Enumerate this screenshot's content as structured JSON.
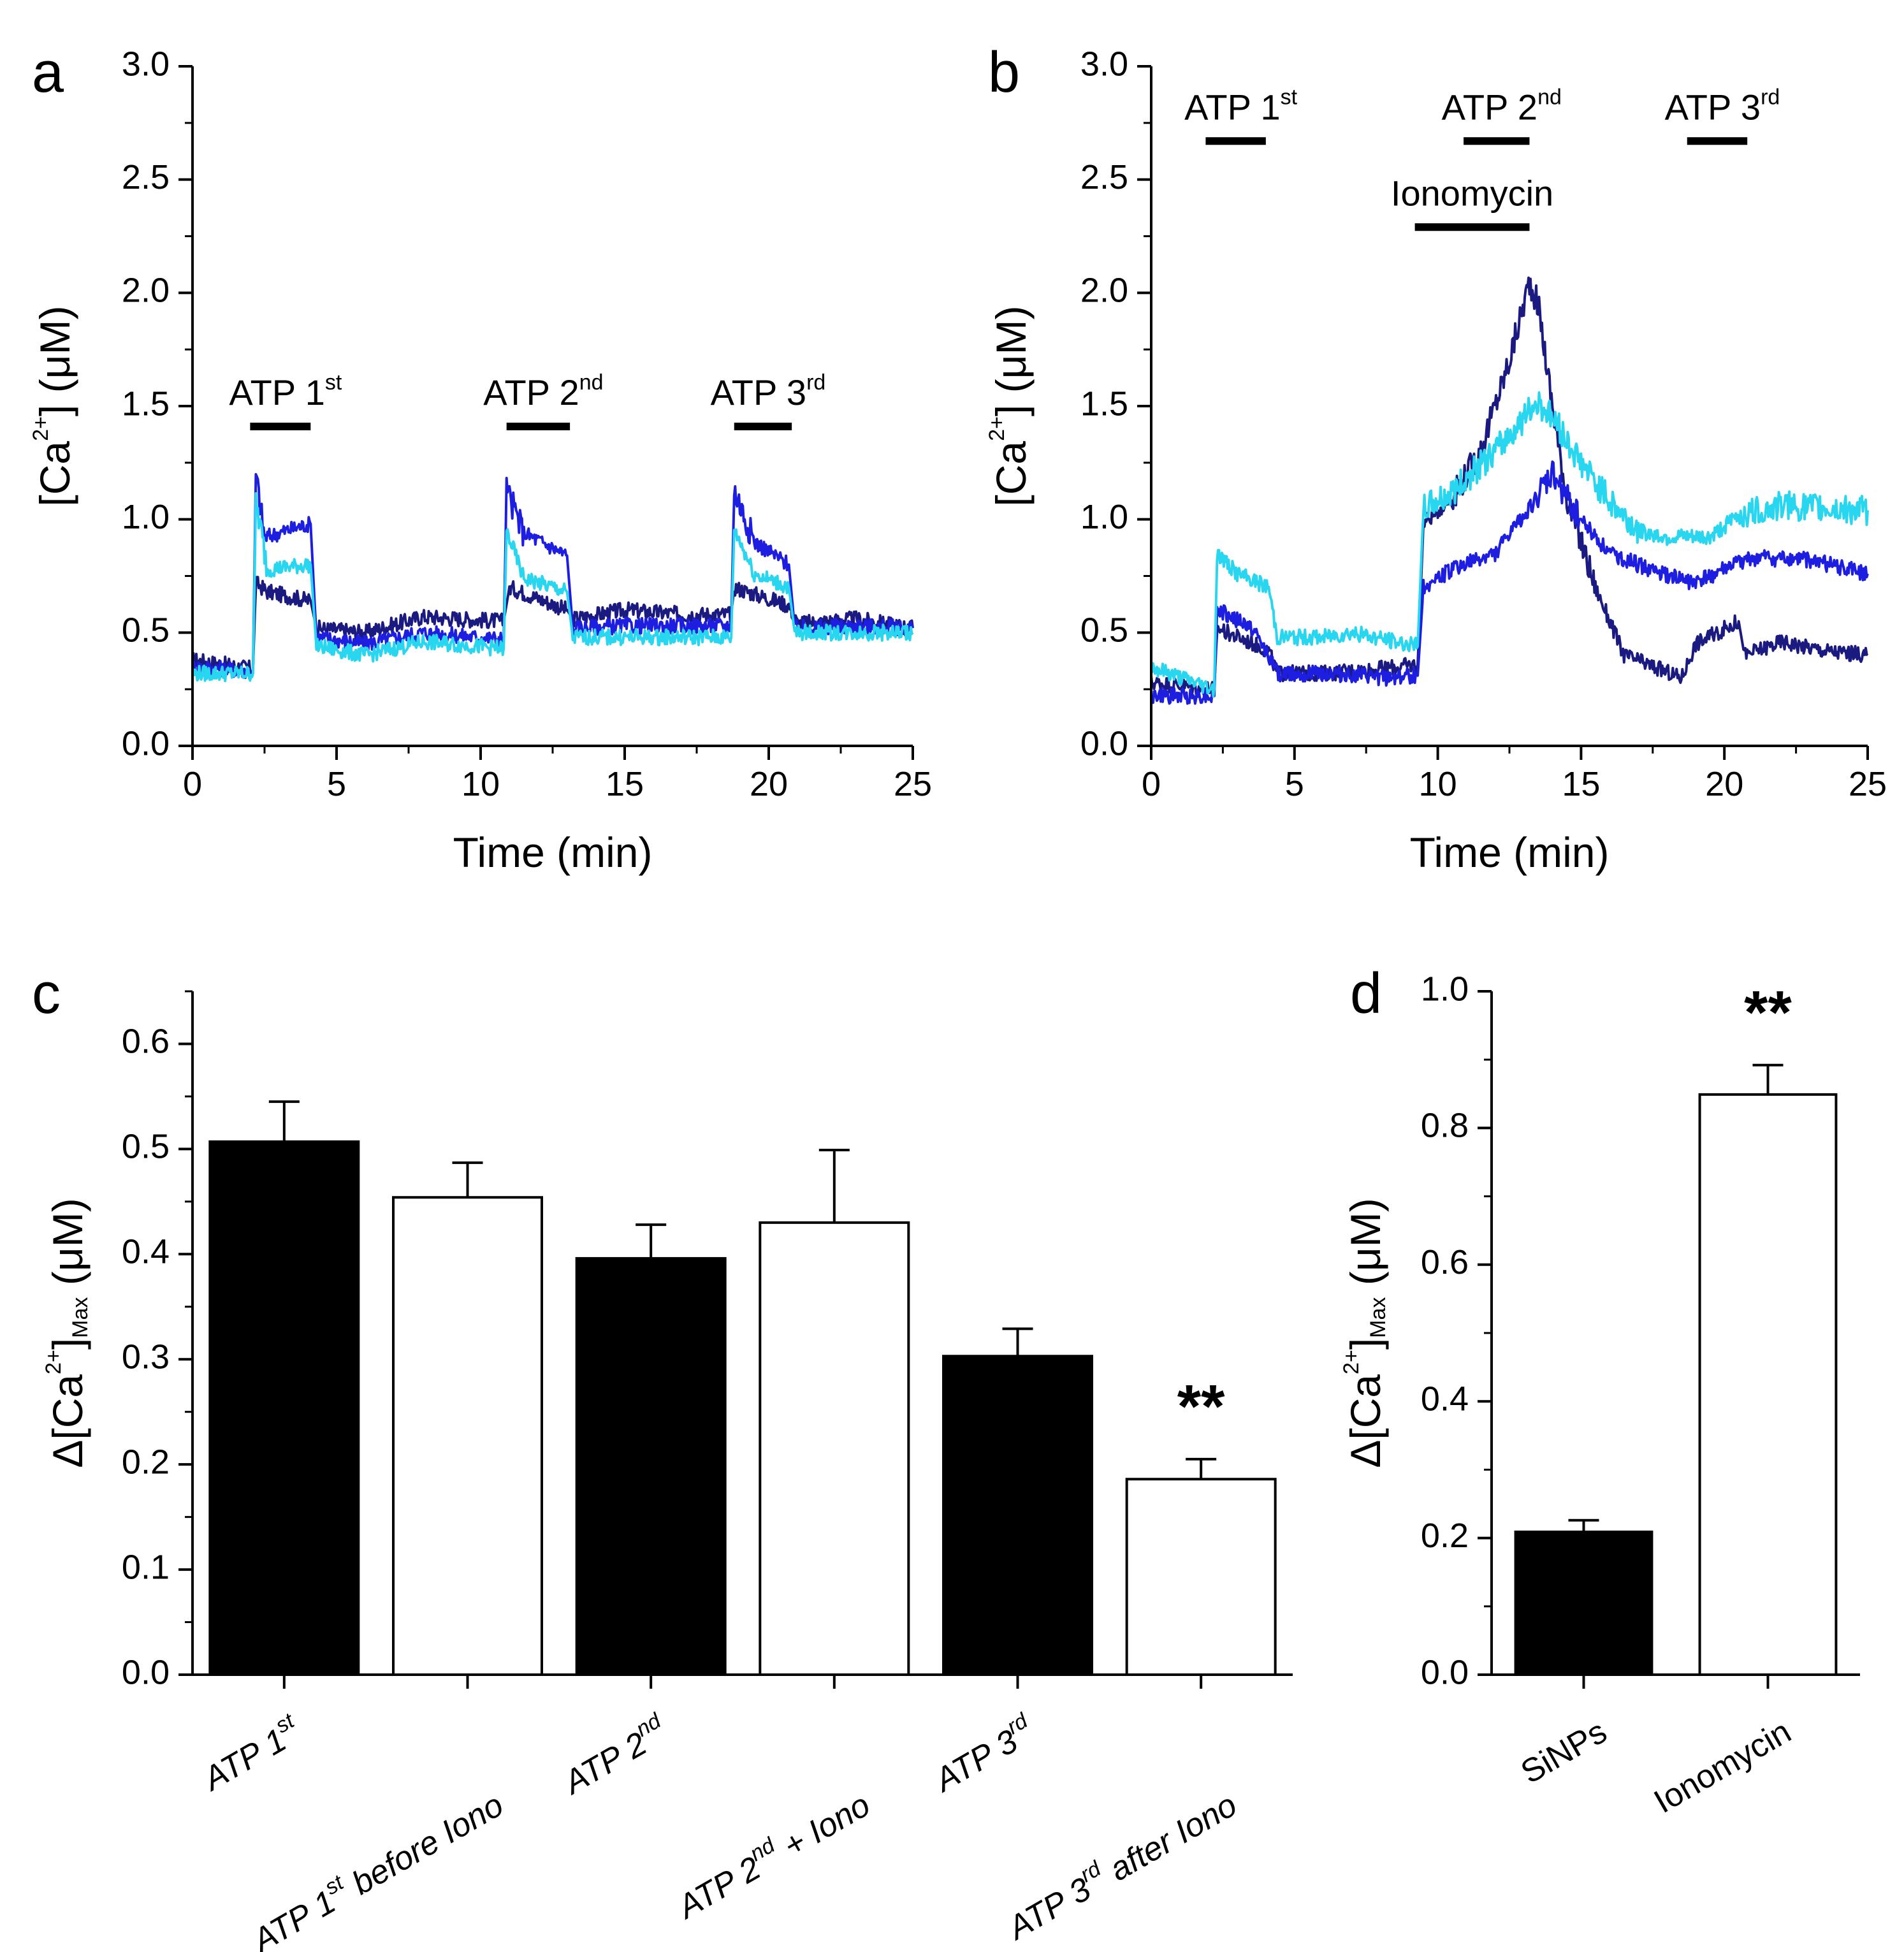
{
  "chart_data": [
    {
      "panel": "a",
      "type": "line",
      "xlabel": "Time (min)",
      "ylabel": "[Ca2+] (μM)",
      "ylabel_parts": {
        "pre": "[Ca",
        "sup": "2+",
        "post": "] (μM)"
      },
      "xlim": [
        0,
        25
      ],
      "ylim": [
        0,
        3.0
      ],
      "xticks": [
        "0",
        "5",
        "10",
        "15",
        "20",
        "25"
      ],
      "yticks": [
        "0.0",
        "0.5",
        "1.0",
        "1.5",
        "2.0",
        "2.5",
        "3.0"
      ],
      "drug_bars": [
        {
          "label": "ATP 1",
          "sup": "st",
          "start": 2.0,
          "end": 4.1,
          "level": 1.41
        },
        {
          "label": "ATP 2",
          "sup": "nd",
          "start": 10.9,
          "end": 13.1,
          "level": 1.41
        },
        {
          "label": "ATP 3",
          "sup": "rd",
          "start": 18.8,
          "end": 20.8,
          "level": 1.41
        }
      ],
      "series": [
        {
          "name": "trace-1",
          "color": "#1a1a80",
          "points": [
            [
              0,
              0.38
            ],
            [
              2.1,
              0.34
            ],
            [
              2.2,
              0.72
            ],
            [
              2.6,
              0.68
            ],
            [
              4.1,
              0.64
            ],
            [
              4.3,
              0.52
            ],
            [
              6,
              0.5
            ],
            [
              8,
              0.57
            ],
            [
              10.8,
              0.55
            ],
            [
              11,
              0.7
            ],
            [
              13,
              0.6
            ],
            [
              13.2,
              0.56
            ],
            [
              15,
              0.6
            ],
            [
              17,
              0.58
            ],
            [
              18.7,
              0.58
            ],
            [
              18.8,
              0.7
            ],
            [
              20.7,
              0.62
            ],
            [
              21,
              0.54
            ],
            [
              23,
              0.56
            ],
            [
              25,
              0.52
            ]
          ]
        },
        {
          "name": "trace-2",
          "color": "#1e1ee0",
          "points": [
            [
              0,
              0.35
            ],
            [
              2.1,
              0.33
            ],
            [
              2.2,
              1.2
            ],
            [
              2.5,
              0.92
            ],
            [
              3.5,
              0.96
            ],
            [
              4.1,
              0.98
            ],
            [
              4.3,
              0.48
            ],
            [
              6,
              0.45
            ],
            [
              8,
              0.5
            ],
            [
              10.8,
              0.47
            ],
            [
              10.9,
              1.13
            ],
            [
              11.5,
              0.94
            ],
            [
              13,
              0.84
            ],
            [
              13.2,
              0.52
            ],
            [
              15,
              0.53
            ],
            [
              17,
              0.53
            ],
            [
              18.7,
              0.53
            ],
            [
              18.8,
              1.13
            ],
            [
              19.5,
              0.9
            ],
            [
              20.7,
              0.8
            ],
            [
              20.9,
              0.52
            ],
            [
              23,
              0.53
            ],
            [
              25,
              0.52
            ]
          ]
        },
        {
          "name": "trace-3",
          "color": "#29d6f0",
          "points": [
            [
              0,
              0.32
            ],
            [
              2.1,
              0.32
            ],
            [
              2.2,
              1.08
            ],
            [
              2.6,
              0.78
            ],
            [
              4.1,
              0.8
            ],
            [
              4.3,
              0.44
            ],
            [
              6,
              0.4
            ],
            [
              8,
              0.46
            ],
            [
              10.8,
              0.43
            ],
            [
              10.9,
              0.95
            ],
            [
              11.5,
              0.74
            ],
            [
              13,
              0.68
            ],
            [
              13.2,
              0.48
            ],
            [
              15,
              0.48
            ],
            [
              17,
              0.48
            ],
            [
              18.7,
              0.48
            ],
            [
              18.8,
              0.96
            ],
            [
              19.5,
              0.76
            ],
            [
              20.7,
              0.7
            ],
            [
              20.9,
              0.5
            ],
            [
              23,
              0.5
            ],
            [
              25,
              0.5
            ]
          ]
        }
      ]
    },
    {
      "panel": "b",
      "type": "line",
      "xlabel": "Time (min)",
      "ylabel": "[Ca2+] (μM)",
      "ylabel_parts": {
        "pre": "[Ca",
        "sup": "2+",
        "post": "] (μM)"
      },
      "xlim": [
        0,
        25
      ],
      "ylim": [
        0,
        3.0
      ],
      "xticks": [
        "0",
        "5",
        "10",
        "15",
        "20",
        "25"
      ],
      "yticks": [
        "0.0",
        "0.5",
        "1.0",
        "1.5",
        "2.0",
        "2.5",
        "3.0"
      ],
      "drug_bars": [
        {
          "label": "ATP 1",
          "sup": "st",
          "start": 1.9,
          "end": 4.0,
          "level": 2.67
        },
        {
          "label": "ATP 2",
          "sup": "nd",
          "start": 10.9,
          "end": 13.2,
          "level": 2.67
        },
        {
          "label": "ATP 3",
          "sup": "rd",
          "start": 18.7,
          "end": 20.8,
          "level": 2.67
        },
        {
          "label": "Ionomycin",
          "sup": "",
          "start": 9.2,
          "end": 13.2,
          "level": 2.29
        }
      ],
      "series": [
        {
          "name": "trace-1",
          "color": "#1a1a80",
          "points": [
            [
              0,
              0.28
            ],
            [
              2.2,
              0.25
            ],
            [
              2.3,
              0.52
            ],
            [
              4.1,
              0.42
            ],
            [
              4.4,
              0.32
            ],
            [
              6,
              0.32
            ],
            [
              8,
              0.34
            ],
            [
              9.3,
              0.36
            ],
            [
              9.5,
              0.98
            ],
            [
              10.5,
              1.1
            ],
            [
              11.5,
              1.3
            ],
            [
              12.5,
              1.7
            ],
            [
              13.2,
              2.05
            ],
            [
              13.5,
              1.95
            ],
            [
              14,
              1.5
            ],
            [
              14.5,
              1.1
            ],
            [
              15.5,
              0.7
            ],
            [
              16.5,
              0.4
            ],
            [
              18.5,
              0.3
            ],
            [
              19.0,
              0.45
            ],
            [
              20.5,
              0.55
            ],
            [
              20.7,
              0.4
            ],
            [
              22,
              0.46
            ],
            [
              23.5,
              0.42
            ],
            [
              25,
              0.4
            ]
          ]
        },
        {
          "name": "trace-2",
          "color": "#1e1ee0",
          "points": [
            [
              0,
              0.22
            ],
            [
              2.2,
              0.22
            ],
            [
              2.3,
              0.6
            ],
            [
              3.5,
              0.52
            ],
            [
              4.1,
              0.4
            ],
            [
              4.4,
              0.32
            ],
            [
              6,
              0.32
            ],
            [
              8,
              0.3
            ],
            [
              9.3,
              0.31
            ],
            [
              9.5,
              0.7
            ],
            [
              10.5,
              0.78
            ],
            [
              12,
              0.85
            ],
            [
              13.5,
              1.1
            ],
            [
              14,
              1.2
            ],
            [
              15,
              1.0
            ],
            [
              16,
              0.85
            ],
            [
              17,
              0.8
            ],
            [
              18,
              0.75
            ],
            [
              19,
              0.72
            ],
            [
              20,
              0.78
            ],
            [
              21,
              0.83
            ],
            [
              23,
              0.82
            ],
            [
              25,
              0.76
            ]
          ]
        },
        {
          "name": "trace-3",
          "color": "#29d6f0",
          "points": [
            [
              0,
              0.35
            ],
            [
              2.2,
              0.25
            ],
            [
              2.3,
              0.85
            ],
            [
              3.0,
              0.76
            ],
            [
              4.1,
              0.7
            ],
            [
              4.4,
              0.48
            ],
            [
              6,
              0.48
            ],
            [
              7,
              0.5
            ],
            [
              9.3,
              0.44
            ],
            [
              9.5,
              1.05
            ],
            [
              10.5,
              1.12
            ],
            [
              12,
              1.3
            ],
            [
              13.5,
              1.52
            ],
            [
              14,
              1.45
            ],
            [
              15,
              1.25
            ],
            [
              16,
              1.08
            ],
            [
              17,
              0.95
            ],
            [
              18,
              0.92
            ],
            [
              19.5,
              0.92
            ],
            [
              20.5,
              1.02
            ],
            [
              22,
              1.06
            ],
            [
              25,
              1.04
            ]
          ]
        }
      ]
    },
    {
      "panel": "c",
      "type": "bar",
      "ylabel": "Δ[Ca2+]Max (μM)",
      "ylabel_parts": {
        "pre": "Δ[Ca",
        "sup": "2+",
        "post_bracket": "]",
        "sub": "Max",
        "post": " (μM)"
      },
      "ylim": [
        0,
        0.65
      ],
      "yticks": [
        "0.0",
        "0.1",
        "0.2",
        "0.3",
        "0.4",
        "0.5",
        "0.6"
      ],
      "categories": [
        {
          "pre": "ATP 1",
          "sup": "st",
          "post": ""
        },
        {
          "pre": "ATP 1",
          "sup": "st",
          "post": " before Iono"
        },
        {
          "pre": "ATP 2",
          "sup": "nd",
          "post": ""
        },
        {
          "pre": "ATP 2",
          "sup": "nd",
          "post": " + Iono"
        },
        {
          "pre": "ATP 3",
          "sup": "rd",
          "post": ""
        },
        {
          "pre": "ATP 3",
          "sup": "rd",
          "post": " after Iono"
        }
      ],
      "values": [
        0.507,
        0.454,
        0.396,
        0.43,
        0.303,
        0.186
      ],
      "errors": [
        0.038,
        0.033,
        0.032,
        0.069,
        0.026,
        0.019
      ],
      "fills": [
        "#000000",
        "#ffffff",
        "#000000",
        "#ffffff",
        "#000000",
        "#ffffff"
      ],
      "annotations": [
        {
          "index": 5,
          "text": "**"
        }
      ]
    },
    {
      "panel": "d",
      "type": "bar",
      "ylabel": "Δ[Ca2+]Max (μM)",
      "ylabel_parts": {
        "pre": "Δ[Ca",
        "sup": "2+",
        "post_bracket": "]",
        "sub": "Max",
        "post": " (μM)"
      },
      "ylim": [
        0,
        1.0
      ],
      "yticks": [
        "0.0",
        "0.2",
        "0.4",
        "0.6",
        "0.8",
        "1.0"
      ],
      "categories": [
        {
          "pre": "SiNPs",
          "sup": "",
          "post": ""
        },
        {
          "pre": "Ionomycin",
          "sup": "",
          "post": ""
        }
      ],
      "values": [
        0.209,
        0.849
      ],
      "errors": [
        0.017,
        0.043
      ],
      "fills": [
        "#000000",
        "#ffffff"
      ],
      "annotations": [
        {
          "index": 1,
          "text": "**"
        }
      ]
    }
  ]
}
